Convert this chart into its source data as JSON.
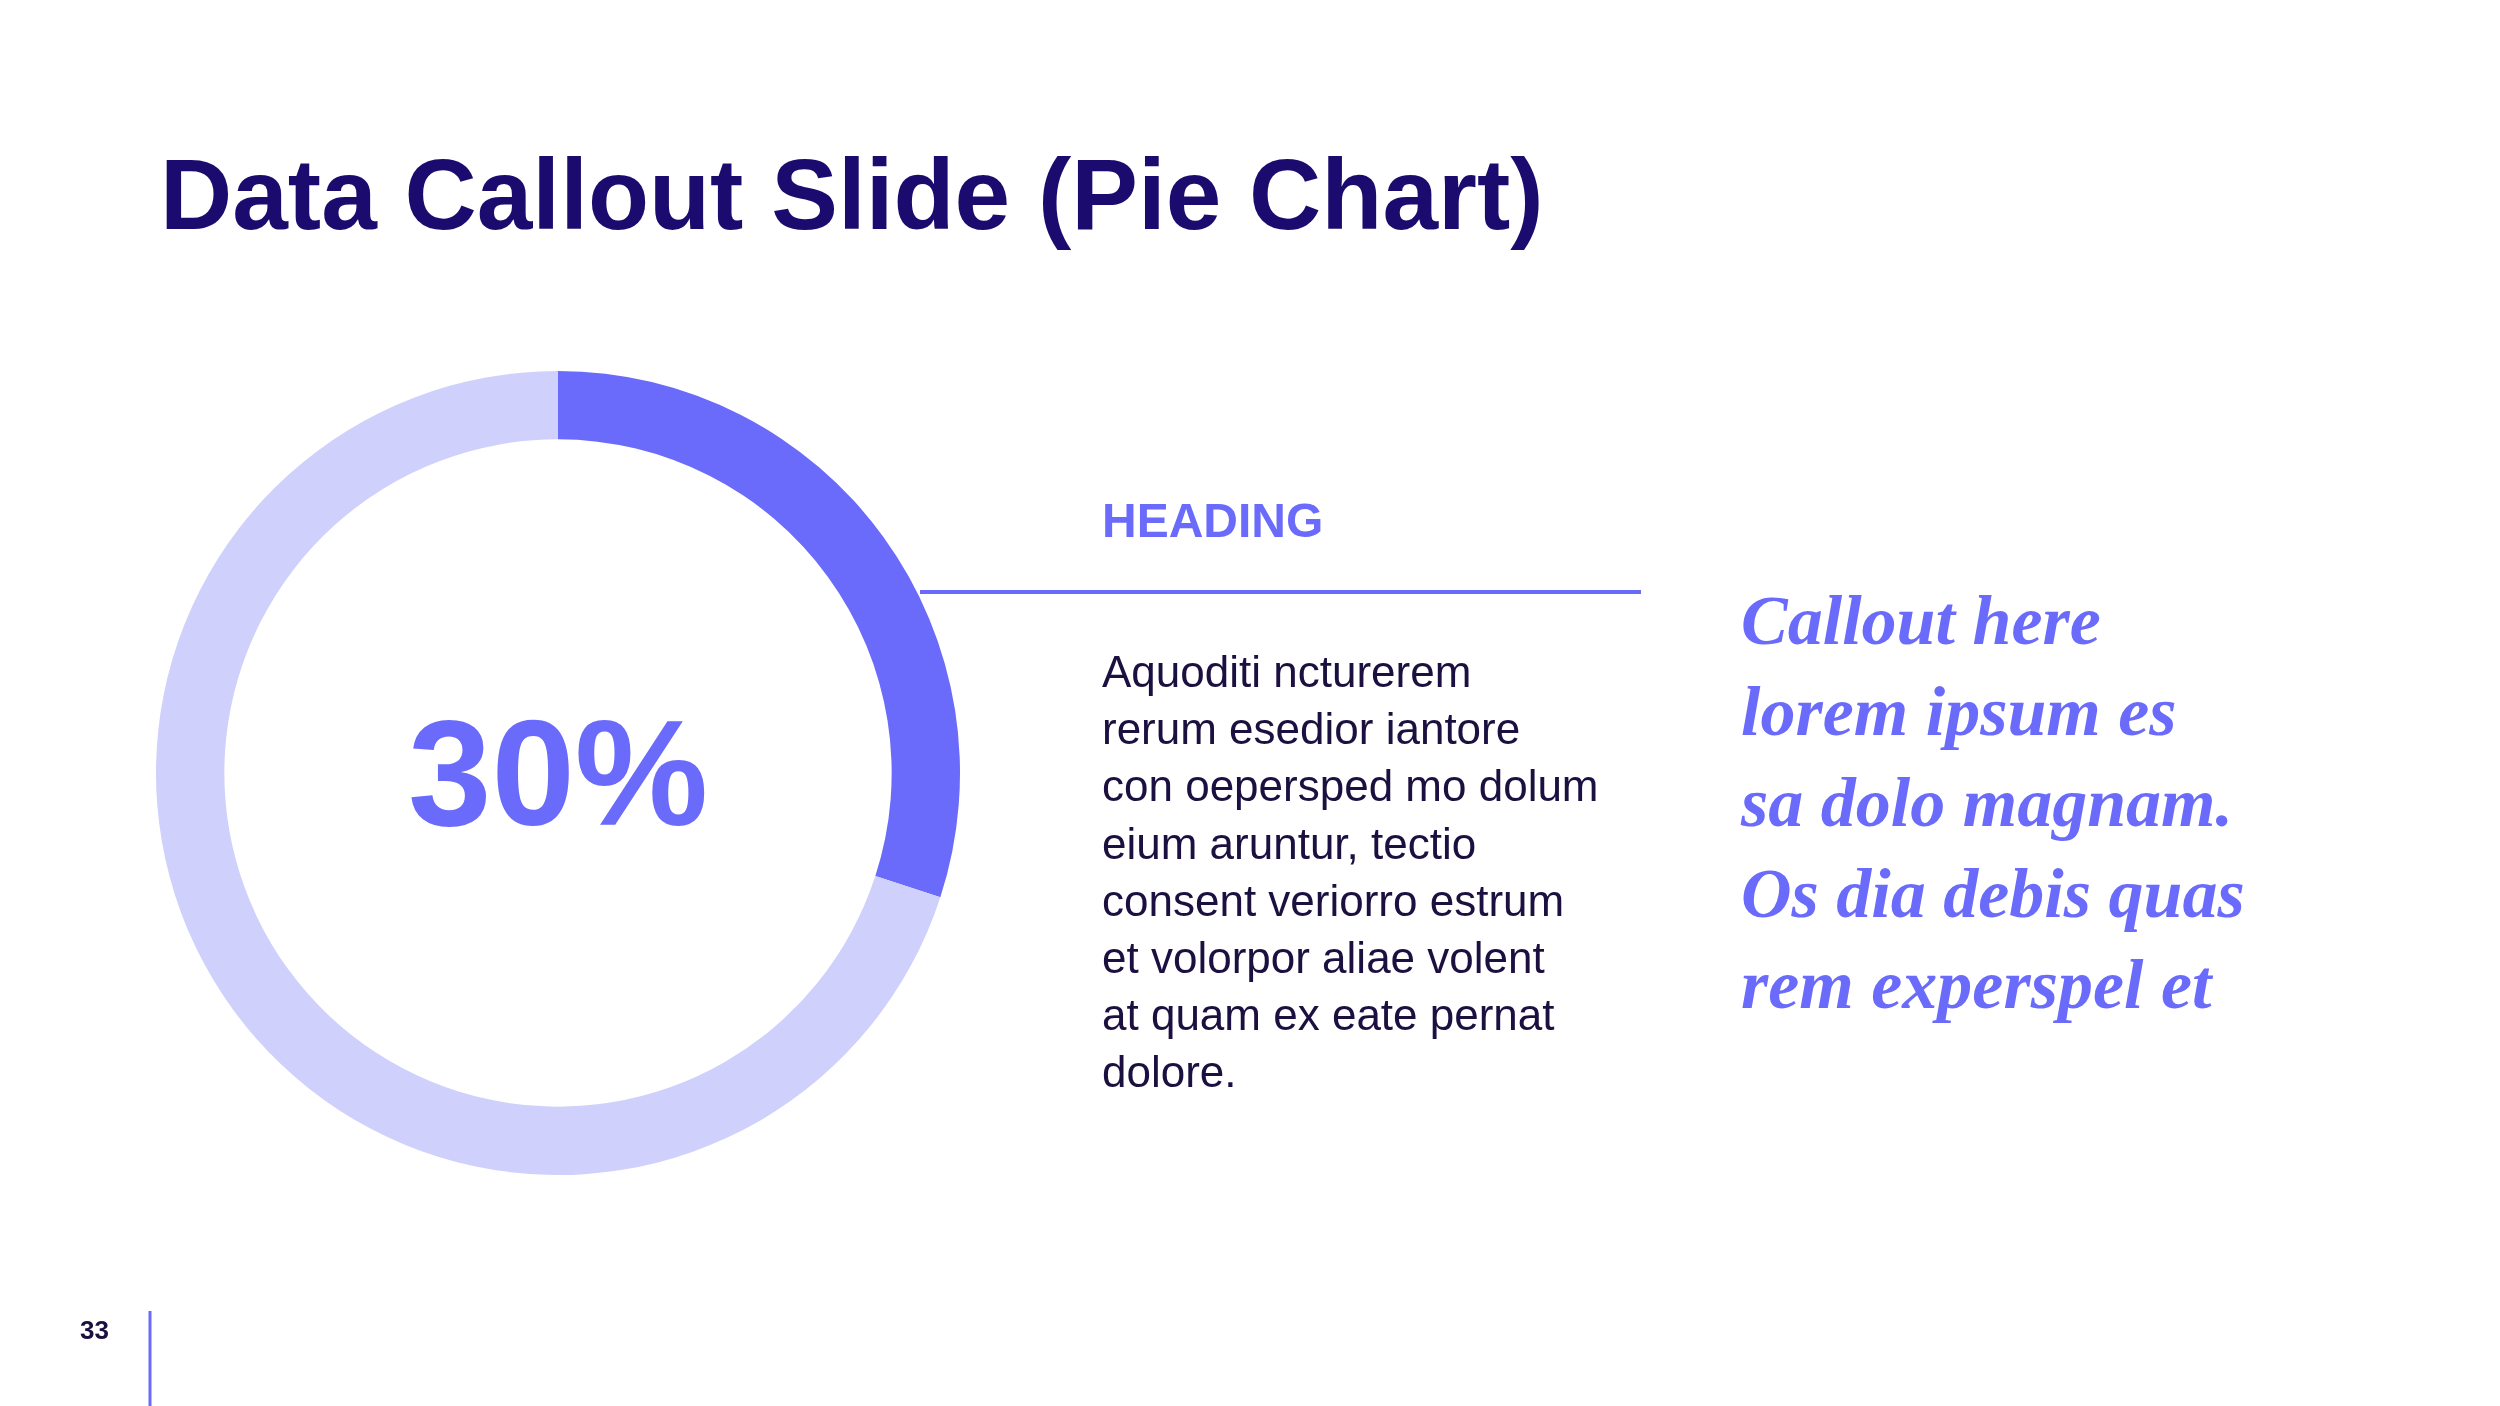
{
  "chart_data": {
    "type": "donut",
    "title": "Data Callout Slide (Pie Chart)",
    "categories": [
      null,
      null
    ],
    "values": [
      30,
      70
    ],
    "colors": [
      "#6b6bfb",
      "#cfd0fb"
    ],
    "legend": false,
    "annotations": [
      "30%",
      "HEADING",
      "Aquoditi ncturerem\nrerum esedior iantore\ncon oepersped mo dolum\neium aruntur, tectio\nconsent veriorro estrum\net volorpor aliae volent\nat quam ex eate pernat\ndolore.",
      "Callout here\nlorem ipsum es\nsa dolo magnam.\nOs dia debis quas\nrem experspel et",
      "33"
    ]
  }
}
